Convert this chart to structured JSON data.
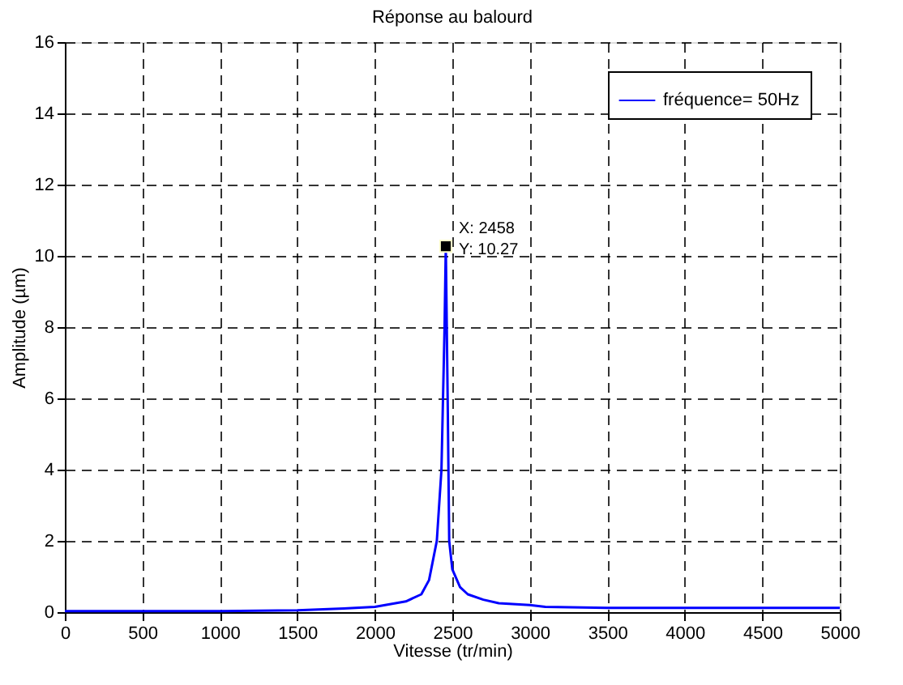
{
  "chart_data": {
    "type": "line",
    "title": "Réponse au balourd",
    "xlabel": "Vitesse (tr/min)",
    "ylabel": "Amplitude (µm)",
    "series": [
      {
        "name": "fréquence= 50Hz",
        "color": "#0000ff",
        "x": [
          0,
          500,
          1000,
          1500,
          1800,
          2000,
          2200,
          2300,
          2350,
          2400,
          2430,
          2450,
          2458,
          2470,
          2480,
          2500,
          2550,
          2600,
          2700,
          2800,
          3000,
          3100,
          3500,
          4000,
          4500,
          5000
        ],
        "values": [
          0.03,
          0.03,
          0.03,
          0.05,
          0.1,
          0.15,
          0.3,
          0.5,
          0.9,
          2.0,
          4.0,
          8.0,
          10.27,
          6.0,
          2.0,
          1.2,
          0.7,
          0.5,
          0.35,
          0.25,
          0.2,
          0.15,
          0.12,
          0.12,
          0.12,
          0.12
        ]
      }
    ],
    "annotations": [
      {
        "text": "X: 2458\nY: 10.27",
        "x": 2458,
        "y": 10.27
      }
    ],
    "xlim": [
      0,
      5000
    ],
    "xticks": [
      0,
      500,
      1000,
      1500,
      2000,
      2500,
      3000,
      3500,
      4000,
      4500,
      5000
    ],
    "ylim": [
      0,
      16
    ],
    "yticks": [
      0,
      2,
      4,
      6,
      8,
      10,
      12,
      14,
      16
    ],
    "grid": true,
    "legend": "top right",
    "marker": "none",
    "line_style": "solid"
  }
}
